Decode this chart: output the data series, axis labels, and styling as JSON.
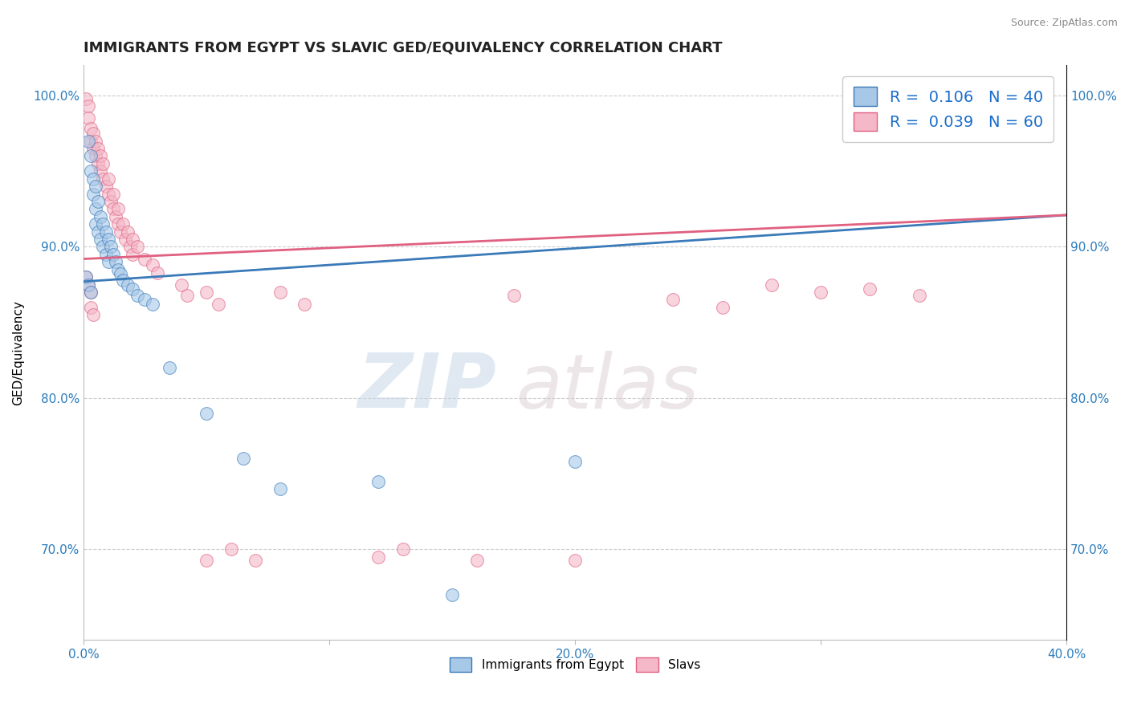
{
  "title": "IMMIGRANTS FROM EGYPT VS SLAVIC GED/EQUIVALENCY CORRELATION CHART",
  "source_text": "Source: ZipAtlas.com",
  "ylabel": "GED/Equivalency",
  "legend_label_1": "Immigrants from Egypt",
  "legend_label_2": "Slavs",
  "R1": 0.106,
  "N1": 40,
  "R2": 0.039,
  "N2": 60,
  "color1": "#a8c8e8",
  "color2": "#f4b8c8",
  "trendline1_color": "#3a7ab8",
  "trendline2_color": "#e06080",
  "xlim": [
    0.0,
    0.4
  ],
  "ylim": [
    0.64,
    1.02
  ],
  "xticks": [
    0.0,
    0.1,
    0.2,
    0.3,
    0.4
  ],
  "yticks": [
    0.7,
    0.8,
    0.9,
    1.0
  ],
  "xticklabels": [
    "0.0%",
    "",
    "20.0%",
    "",
    "40.0%"
  ],
  "yticklabels": [
    "70.0%",
    "80.0%",
    "90.0%",
    "100.0%"
  ],
  "blue_dots": [
    [
      0.002,
      0.97
    ],
    [
      0.003,
      0.96
    ],
    [
      0.003,
      0.95
    ],
    [
      0.004,
      0.945
    ],
    [
      0.004,
      0.935
    ],
    [
      0.005,
      0.94
    ],
    [
      0.005,
      0.925
    ],
    [
      0.005,
      0.915
    ],
    [
      0.006,
      0.93
    ],
    [
      0.006,
      0.91
    ],
    [
      0.007,
      0.92
    ],
    [
      0.007,
      0.905
    ],
    [
      0.008,
      0.915
    ],
    [
      0.008,
      0.9
    ],
    [
      0.009,
      0.91
    ],
    [
      0.009,
      0.895
    ],
    [
      0.01,
      0.905
    ],
    [
      0.01,
      0.89
    ],
    [
      0.011,
      0.9
    ],
    [
      0.012,
      0.895
    ],
    [
      0.013,
      0.89
    ],
    [
      0.014,
      0.885
    ],
    [
      0.015,
      0.882
    ],
    [
      0.016,
      0.878
    ],
    [
      0.018,
      0.875
    ],
    [
      0.02,
      0.872
    ],
    [
      0.022,
      0.868
    ],
    [
      0.025,
      0.865
    ],
    [
      0.028,
      0.862
    ],
    [
      0.001,
      0.88
    ],
    [
      0.002,
      0.875
    ],
    [
      0.003,
      0.87
    ],
    [
      0.035,
      0.82
    ],
    [
      0.05,
      0.79
    ],
    [
      0.065,
      0.76
    ],
    [
      0.08,
      0.74
    ],
    [
      0.12,
      0.745
    ],
    [
      0.15,
      0.67
    ],
    [
      0.2,
      0.758
    ],
    [
      0.39,
      1.005
    ]
  ],
  "pink_dots": [
    [
      0.001,
      0.998
    ],
    [
      0.002,
      0.993
    ],
    [
      0.002,
      0.985
    ],
    [
      0.003,
      0.978
    ],
    [
      0.003,
      0.97
    ],
    [
      0.004,
      0.975
    ],
    [
      0.004,
      0.965
    ],
    [
      0.005,
      0.97
    ],
    [
      0.005,
      0.96
    ],
    [
      0.006,
      0.965
    ],
    [
      0.006,
      0.955
    ],
    [
      0.007,
      0.96
    ],
    [
      0.007,
      0.95
    ],
    [
      0.008,
      0.955
    ],
    [
      0.008,
      0.945
    ],
    [
      0.009,
      0.94
    ],
    [
      0.01,
      0.945
    ],
    [
      0.01,
      0.935
    ],
    [
      0.011,
      0.93
    ],
    [
      0.012,
      0.935
    ],
    [
      0.012,
      0.925
    ],
    [
      0.013,
      0.92
    ],
    [
      0.014,
      0.925
    ],
    [
      0.014,
      0.915
    ],
    [
      0.015,
      0.91
    ],
    [
      0.016,
      0.915
    ],
    [
      0.017,
      0.905
    ],
    [
      0.018,
      0.91
    ],
    [
      0.019,
      0.9
    ],
    [
      0.02,
      0.905
    ],
    [
      0.02,
      0.895
    ],
    [
      0.022,
      0.9
    ],
    [
      0.025,
      0.892
    ],
    [
      0.028,
      0.888
    ],
    [
      0.03,
      0.883
    ],
    [
      0.001,
      0.88
    ],
    [
      0.002,
      0.875
    ],
    [
      0.003,
      0.87
    ],
    [
      0.003,
      0.86
    ],
    [
      0.004,
      0.855
    ],
    [
      0.04,
      0.875
    ],
    [
      0.042,
      0.868
    ],
    [
      0.05,
      0.87
    ],
    [
      0.055,
      0.862
    ],
    [
      0.06,
      0.7
    ],
    [
      0.07,
      0.693
    ],
    [
      0.08,
      0.87
    ],
    [
      0.09,
      0.862
    ],
    [
      0.13,
      0.7
    ],
    [
      0.16,
      0.693
    ],
    [
      0.175,
      0.868
    ],
    [
      0.2,
      0.693
    ],
    [
      0.24,
      0.865
    ],
    [
      0.26,
      0.86
    ],
    [
      0.28,
      0.875
    ],
    [
      0.3,
      0.87
    ],
    [
      0.32,
      0.872
    ],
    [
      0.34,
      0.868
    ],
    [
      0.05,
      0.693
    ],
    [
      0.12,
      0.695
    ]
  ],
  "watermark_zip": "ZIP",
  "watermark_atlas": "atlas",
  "title_fontsize": 13,
  "axis_label_fontsize": 11,
  "tick_fontsize": 11,
  "legend_fontsize": 14,
  "tick_color": "#2b7bba"
}
